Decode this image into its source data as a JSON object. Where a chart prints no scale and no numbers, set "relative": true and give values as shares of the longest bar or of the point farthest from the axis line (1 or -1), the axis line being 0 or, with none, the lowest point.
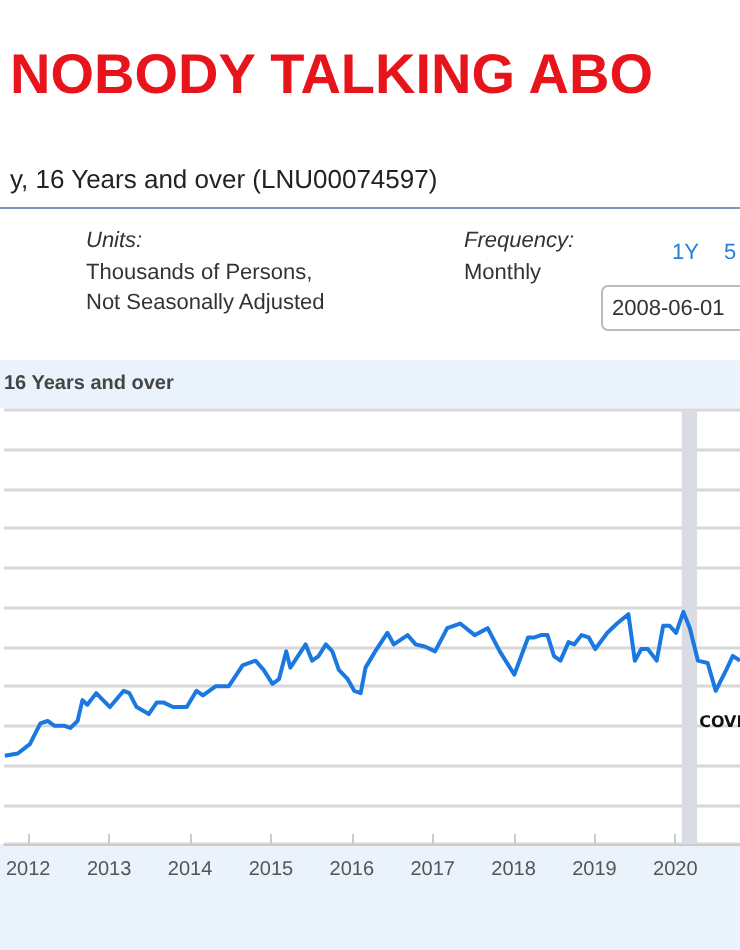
{
  "chart_data": {
    "type": "line",
    "title": "NOBODY TALKING ABO",
    "subtitle": "y, 16 Years and over (LNU00074597)",
    "annotations": [
      "Units:",
      "Thousands of Persons,",
      "Not Seasonally Adjusted",
      "Frequency:",
      "Monthly",
      "1Y",
      "5",
      "2008-06-01",
      "16 Years and over"
    ],
    "relative": true,
    "xlim": [
      2011.7,
      2020.8
    ],
    "xticks": [
      2012,
      2013,
      2014,
      2015,
      2016,
      2017,
      2018,
      2019,
      2020
    ],
    "grid": "y",
    "marker": "none",
    "line_style": "solid",
    "bands": [
      {
        "axis": "x",
        "from": 2020.08,
        "to": 2020.27,
        "label": "COVI",
        "color": "#d9dde3"
      }
    ],
    "series": [
      {
        "color": "#1a78e0",
        "x": [
          2011.71,
          2011.87,
          2012.02,
          2012.15,
          2012.24,
          2012.32,
          2012.44,
          2012.52,
          2012.61,
          2012.67,
          2012.73,
          2012.84,
          2013.01,
          2013.18,
          2013.25,
          2013.34,
          2013.49,
          2013.59,
          2013.67,
          2013.79,
          2013.96,
          2014.08,
          2014.16,
          2014.32,
          2014.48,
          2014.65,
          2014.81,
          2014.91,
          2015.02,
          2015.1,
          2015.19,
          2015.24,
          2015.43,
          2015.51,
          2015.59,
          2015.68,
          2015.76,
          2015.84,
          2015.95,
          2016.03,
          2016.11,
          2016.17,
          2016.29,
          2016.44,
          2016.52,
          2016.69,
          2016.79,
          2016.91,
          2017.03,
          2017.18,
          2017.34,
          2017.52,
          2017.68,
          2017.83,
          2018.01,
          2018.18,
          2018.26,
          2018.34,
          2018.42,
          2018.5,
          2018.58,
          2018.68,
          2018.75,
          2018.84,
          2018.93,
          2019.01,
          2019.16,
          2019.28,
          2019.42,
          2019.5,
          2019.58,
          2019.66,
          2019.77,
          2019.85,
          2019.93,
          2020.01,
          2020.1,
          2020.18,
          2020.28,
          2020.4,
          2020.5,
          2020.63,
          2020.71,
          2020.8
        ],
        "values": [
          0.38,
          0.39,
          0.43,
          0.52,
          0.53,
          0.51,
          0.51,
          0.5,
          0.53,
          0.62,
          0.6,
          0.65,
          0.59,
          0.66,
          0.65,
          0.59,
          0.56,
          0.61,
          0.61,
          0.59,
          0.59,
          0.66,
          0.64,
          0.68,
          0.68,
          0.77,
          0.79,
          0.75,
          0.69,
          0.71,
          0.83,
          0.76,
          0.86,
          0.79,
          0.81,
          0.86,
          0.83,
          0.75,
          0.71,
          0.66,
          0.65,
          0.76,
          0.83,
          0.91,
          0.86,
          0.9,
          0.86,
          0.85,
          0.83,
          0.93,
          0.95,
          0.9,
          0.93,
          0.83,
          0.73,
          0.89,
          0.89,
          0.9,
          0.9,
          0.81,
          0.79,
          0.87,
          0.86,
          0.9,
          0.89,
          0.84,
          0.91,
          0.95,
          0.99,
          0.79,
          0.84,
          0.84,
          0.79,
          0.94,
          0.94,
          0.91,
          1.0,
          0.93,
          0.79,
          0.78,
          0.66,
          0.75,
          0.81,
          0.79
        ]
      }
    ]
  }
}
